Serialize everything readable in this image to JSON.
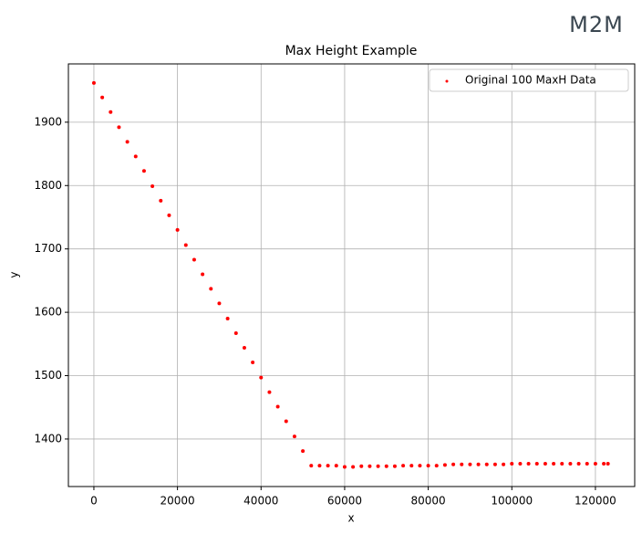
{
  "logo": "M2M",
  "chart_data": {
    "type": "scatter",
    "title": "Max Height Example",
    "x_label": "x",
    "y_label": "y",
    "series": [
      {
        "name": "Original 100 MaxH Data",
        "color": "#ff0000",
        "x": [
          0,
          2000,
          4000,
          6000,
          8000,
          10000,
          12000,
          14000,
          16000,
          18000,
          20000,
          22000,
          24000,
          26000,
          28000,
          30000,
          32000,
          34000,
          36000,
          38000,
          40000,
          42000,
          44000,
          46000,
          48000,
          50000,
          52000,
          54000,
          56000,
          58000,
          60000,
          62000,
          64000,
          66000,
          68000,
          70000,
          72000,
          74000,
          76000,
          78000,
          80000,
          82000,
          84000,
          86000,
          88000,
          90000,
          92000,
          94000,
          96000,
          98000,
          100000,
          102000,
          104000,
          106000,
          108000,
          110000,
          112000,
          114000,
          116000,
          118000,
          120000,
          122000,
          123000
        ],
        "values": [
          1962,
          1939,
          1916,
          1892,
          1869,
          1846,
          1823,
          1799,
          1776,
          1753,
          1730,
          1706,
          1683,
          1660,
          1637,
          1614,
          1590,
          1567,
          1544,
          1521,
          1497,
          1474,
          1451,
          1428,
          1404,
          1381,
          1358,
          1358,
          1358,
          1358,
          1356,
          1356,
          1357,
          1357,
          1357,
          1357,
          1357,
          1358,
          1358,
          1358,
          1358,
          1358,
          1359,
          1360,
          1360,
          1360,
          1360,
          1360,
          1360,
          1360,
          1361,
          1361,
          1361,
          1361,
          1361,
          1361,
          1361,
          1361,
          1361,
          1361,
          1361,
          1361,
          1361
        ]
      }
    ],
    "xlim": [
      -6100,
      129400
    ],
    "xticks": [
      0,
      20000,
      40000,
      60000,
      80000,
      100000,
      120000
    ],
    "ylim": [
      1325,
      1992
    ],
    "yticks": [
      1400,
      1500,
      1600,
      1700,
      1800,
      1900
    ],
    "grid": true,
    "legend": "upper-right"
  }
}
